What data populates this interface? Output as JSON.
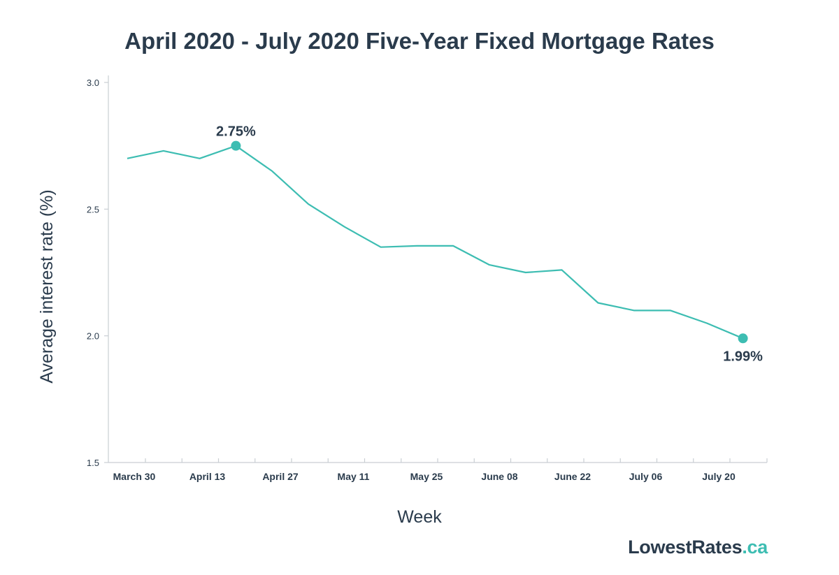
{
  "chart_data": {
    "type": "line",
    "title": "April 2020 - July 2020 Five-Year Fixed Mortgage Rates",
    "xlabel": "Week",
    "ylabel": "Average interest rate (%)",
    "ylim": [
      1.5,
      3.0
    ],
    "yticks": [
      "3.0",
      "2.5",
      "2.0",
      "1.5"
    ],
    "xtick_labels": [
      "March 30",
      "April 13",
      "April 27",
      "May 11",
      "May 25",
      "June 08",
      "June 22",
      "July 06",
      "July 20"
    ],
    "series": [
      {
        "values": [
          2.7,
          2.73,
          2.7,
          2.75,
          2.65,
          2.52,
          2.43,
          2.35,
          2.355,
          2.355,
          2.28,
          2.25,
          2.26,
          2.13,
          2.1,
          2.1,
          2.05,
          1.99
        ]
      }
    ],
    "annotations": [
      {
        "index": 3,
        "text": "2.75%"
      },
      {
        "index": 17,
        "text": "1.99%"
      }
    ],
    "grid": false,
    "legend": "none",
    "line_color": "#3dbdb2"
  },
  "brand": {
    "main": "LowestRates",
    "tld": ".ca"
  }
}
